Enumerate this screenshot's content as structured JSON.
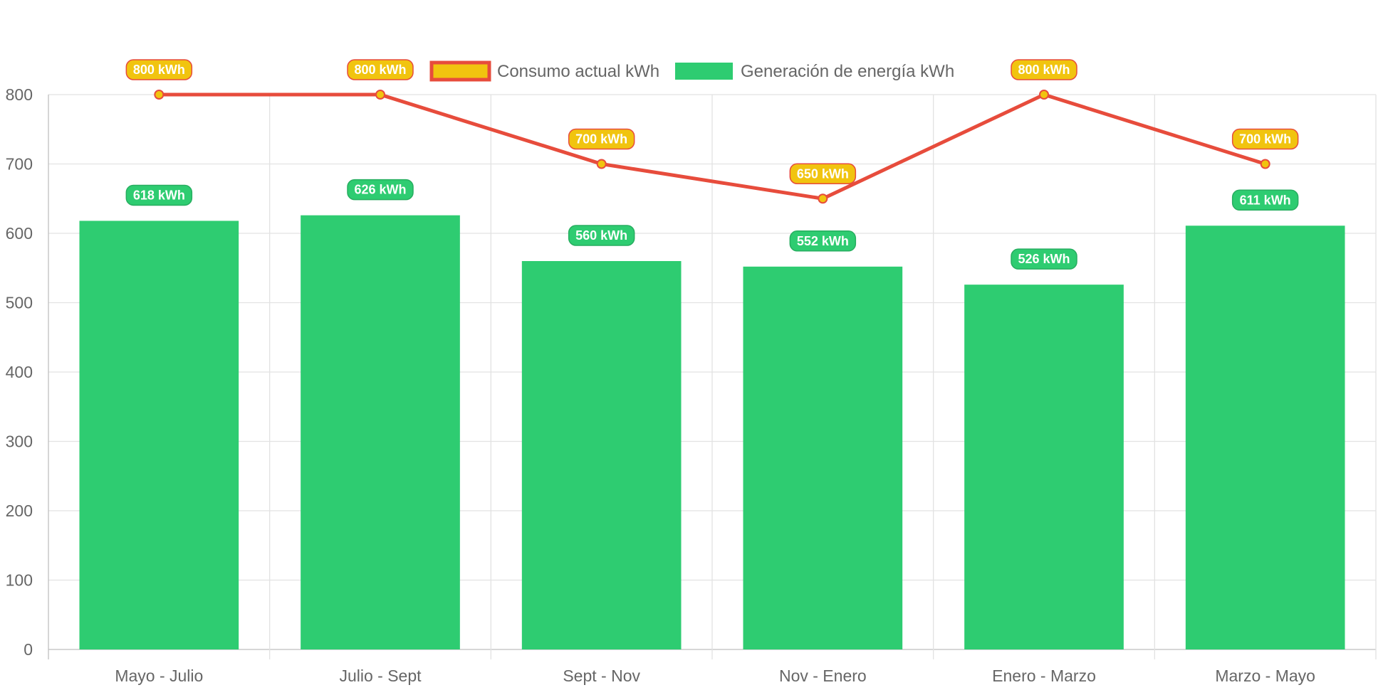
{
  "chart_data": {
    "type": "bar",
    "categories": [
      "Mayo - Julio",
      "Julio - Sept",
      "Sept - Nov",
      "Nov - Enero",
      "Enero - Marzo",
      "Marzo - Mayo"
    ],
    "series": [
      {
        "name": "Consumo actual kWh",
        "type": "line",
        "values": [
          800,
          800,
          700,
          650,
          800,
          700
        ],
        "data_labels": [
          "800 kWh",
          "800 kWh",
          "700 kWh",
          "650 kWh",
          "800 kWh",
          "700 kWh"
        ],
        "line_color": "#e74c3c",
        "fill_color": "#f1c40f"
      },
      {
        "name": "Generación de energía kWh",
        "type": "bar",
        "values": [
          618,
          626,
          560,
          552,
          526,
          611
        ],
        "data_labels": [
          "618 kWh",
          "626 kWh",
          "560 kWh",
          "552 kWh",
          "526 kWh",
          "611 kWh"
        ],
        "color": "#2ecc71",
        "label_border": "#27ae60"
      }
    ],
    "ylim": [
      0,
      800
    ],
    "yticks": [
      "0",
      "100",
      "200",
      "300",
      "400",
      "500",
      "600",
      "700",
      "800"
    ],
    "grid": true,
    "legend_position": "top"
  }
}
